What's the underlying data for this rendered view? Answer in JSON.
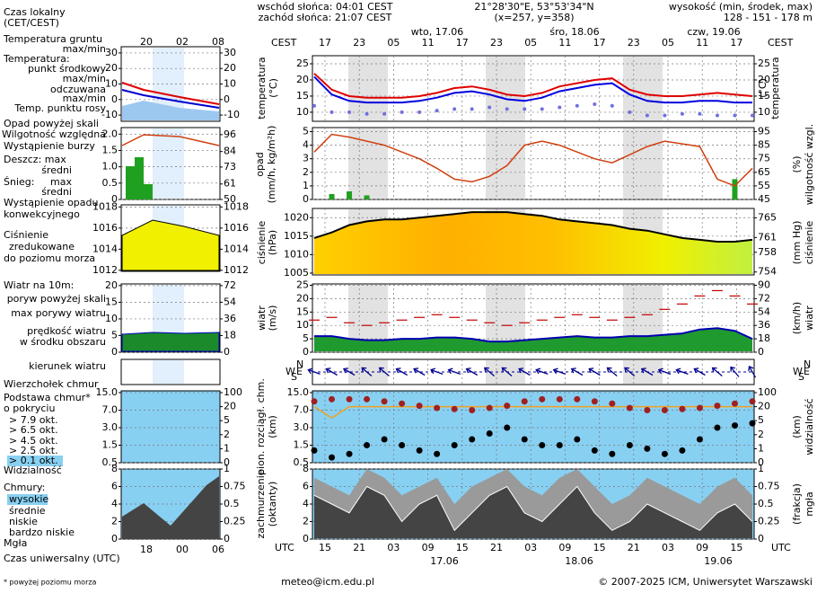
{
  "header": {
    "sunrise": "wschód słońca: 04:01 CEST",
    "sunset": "zachód słońca: 21:07 CEST",
    "coords": "21°28'30\"E, 53°53'34\"N",
    "grid": "(x=257, y=358)",
    "height_title": "wysokość (min, środek, max)",
    "height": "128 - 151 - 178 m"
  },
  "time": {
    "cest_label": "CEST",
    "cest_hours": [
      "17",
      "23",
      "05",
      "11",
      "17",
      "23",
      "05",
      "11",
      "17",
      "23",
      "05",
      "11",
      "17"
    ],
    "days": [
      "wto, 17.06",
      "śro, 18.06",
      "czw, 19.06"
    ],
    "utc_label": "UTC",
    "utc_hours": [
      "15",
      "21",
      "03",
      "09",
      "15",
      "21",
      "03",
      "09",
      "15",
      "21",
      "03",
      "09",
      "15"
    ],
    "dates": [
      "17.06",
      "18.06",
      "19.06"
    ],
    "side_top": [
      "20",
      "02",
      "08"
    ],
    "side_bottom": [
      "18",
      "00",
      "06"
    ]
  },
  "legend": {
    "local_time": "Czas lokalny",
    "local_zone": "(CET/CEST)",
    "ground_temp": "Temperatura gruntu",
    "ground_maxmin": "max/min",
    "temperature": "Temperatura:",
    "mid_point": "punkt środkowy",
    "mid_maxmin": "max/min",
    "apparent": "odczuwana",
    "apparent_maxmin": "max/min",
    "dew_point": "Temp. punktu rosy",
    "precip_over": "Opad powyżej skali",
    "humidity": "Wilgotność względna",
    "storm": "Wystąpienie burzy",
    "rain_max": "Deszcz: max",
    "rain_mean": "średni",
    "snow": "Śnieg:",
    "snow_max": "max",
    "snow_mean": "średni",
    "convective_1": "Wystąpienie opadu",
    "convective_2": "konwekcyjnego",
    "pressure_1": "Ciśnienie",
    "pressure_2": "zredukowane",
    "pressure_3": "do poziomu morza",
    "wind_title": "Wiatr na 10m:",
    "gust_over": "poryw powyżej skali",
    "gust_max": "max porywy wiatru",
    "wind_speed_1": "prędkość wiatru",
    "wind_speed_2": "w środku obszaru",
    "wind_dir": "kierunek wiatru",
    "cloud_top": "Wierzchołek chmur",
    "cloud_base_1": "Podstawa chmur*",
    "cloud_base_2": "o pokryciu",
    "okt_79": "> 7.9 okt.",
    "okt_65": "> 6.5 okt.",
    "okt_45": "> 4.5 okt.",
    "okt_25": "> 2.5 okt.",
    "okt_01": "> 0.1 okt.",
    "visibility": "Widzialność",
    "clouds": "Chmury:",
    "high": "wysokie",
    "medium": "średnie",
    "low": "niskie",
    "very_low": "bardzo niskie",
    "fog": "Mgła",
    "utc_time": "Czas uniwersalny (UTC)",
    "footnote": "* powyżej poziomu morza"
  },
  "footer": {
    "email": "meteo@icm.edu.pl",
    "copyright": "© 2007-2025 ICM, Uniwersytet Warszawski"
  },
  "compass": [
    "W",
    "S",
    "N",
    "E"
  ],
  "side": {
    "temperature": {
      "ylim": [
        -14,
        34
      ],
      "yticks": [
        -10,
        0,
        10,
        20,
        30
      ]
    },
    "precip": {
      "ylim": [
        0,
        2.2
      ],
      "yticks": [
        0,
        0.5,
        {
          "value": 1,
          "label": "1.0"
        },
        1.5,
        {
          "value": 2,
          "label": "2.0"
        }
      ],
      "y2lim": [
        50,
        101
      ],
      "y2ticks": [
        50,
        61,
        73,
        84,
        96
      ]
    },
    "pressure": {
      "ylim": [
        1011.9,
        1018.2
      ],
      "yticks": [
        1012,
        1014,
        1016,
        1018
      ]
    },
    "wind": {
      "ylim": [
        0,
        20.5
      ],
      "yticks": [
        0,
        5,
        10,
        15,
        20
      ],
      "y2lim": [
        0,
        73.8
      ],
      "y2ticks": [
        0,
        18,
        36,
        54,
        72
      ]
    },
    "cloudbase": {
      "yticks": [
        0.5,
        1.5,
        {
          "value": 3,
          "label": "3.0"
        },
        {
          "value": 7,
          "label": "7.0"
        },
        {
          "value": 15,
          "label": "15.0"
        }
      ],
      "y2ticks": [
        0,
        1,
        2,
        5,
        20,
        100
      ]
    },
    "cloudcover": {
      "ylim": [
        0,
        8
      ],
      "yticks": [
        0,
        2,
        4,
        6,
        8
      ],
      "y2lim": [
        0,
        1
      ],
      "y2ticks": [
        0,
        0.25,
        0.5,
        0.75,
        1
      ]
    }
  },
  "panels": {
    "temperature": {
      "label": "temperatura",
      "unit": "(°C)",
      "ylim": [
        7.2,
        27.5
      ],
      "yticks": [
        10,
        15,
        20,
        25
      ],
      "mid": [
        22,
        17,
        15,
        14.5,
        14.5,
        14.5,
        15,
        16,
        17.5,
        18,
        17,
        15.5,
        15,
        16,
        18,
        19,
        20,
        20.5,
        17,
        15.5,
        15,
        15,
        15.5,
        16,
        15.5,
        15
      ],
      "min": [
        21,
        15.5,
        13.5,
        13,
        13,
        13,
        13.5,
        14.5,
        16,
        16.5,
        15.5,
        14,
        13.5,
        14.5,
        16.5,
        17.5,
        18.5,
        19,
        15.5,
        13.5,
        13,
        13,
        13.5,
        13.5,
        13,
        13
      ],
      "dew": [
        12,
        10,
        10,
        9.5,
        9.5,
        10,
        10,
        10.5,
        11,
        11,
        11.5,
        11,
        11,
        11,
        11.5,
        12,
        12.5,
        12,
        10,
        9,
        9,
        9.5,
        9.5,
        9,
        9,
        9
      ]
    },
    "precip": {
      "label": "opad",
      "unit": "(mm/h, kg/m²h)",
      "right_label": "wilgotność wzgl.",
      "right_unit": "(%)",
      "ylim": [
        0,
        5.3
      ],
      "yticks": [
        0,
        1,
        2,
        3,
        4,
        5
      ],
      "y2lim": [
        45,
        98
      ],
      "y2ticks": [
        45,
        55,
        65,
        75,
        85,
        95
      ],
      "precip": [
        0,
        0.4,
        0.6,
        0.3,
        0,
        0,
        0,
        0,
        0,
        0,
        0,
        0,
        0,
        0,
        0,
        0,
        0,
        0,
        0,
        0,
        0,
        0,
        0,
        0,
        1.5,
        0
      ],
      "humidity": [
        80,
        93,
        91,
        88,
        85,
        80,
        75,
        68,
        60,
        58,
        62,
        70,
        85,
        88,
        85,
        80,
        75,
        72,
        78,
        84,
        88,
        86,
        84,
        60,
        55,
        68
      ]
    },
    "pressure": {
      "label": "ciśnienie",
      "unit": "(hPa)",
      "right_label": "ciśnienie",
      "right_unit": "(mm Hg)",
      "ylim": [
        1004.5,
        1022.5
      ],
      "yticks": [
        1005,
        1010,
        1015,
        1020
      ],
      "y2lim": [
        753.4,
        766.9
      ],
      "y2ticks": [
        754,
        758,
        761,
        765
      ],
      "values": [
        1014.5,
        1016,
        1018,
        1019,
        1019.5,
        1019.5,
        1020,
        1020.5,
        1021,
        1021.5,
        1021.5,
        1021.5,
        1021,
        1020.5,
        1019.5,
        1019,
        1018.5,
        1018,
        1017,
        1016.5,
        1015.5,
        1014.5,
        1014,
        1013.5,
        1013.5,
        1014
      ]
    },
    "wind": {
      "label": "wiatr",
      "unit": "(m/s)",
      "right_label": "wiatr",
      "right_unit": "(km/h)",
      "ylim": [
        0,
        25.5
      ],
      "yticks": [
        0,
        5,
        10,
        15,
        20,
        25
      ],
      "y2lim": [
        0,
        91.8
      ],
      "y2ticks": [
        0,
        18,
        36,
        54,
        72,
        90
      ],
      "speed": [
        6,
        6,
        5,
        4.5,
        4.5,
        5,
        5,
        5.5,
        5.5,
        5,
        4,
        4,
        4.5,
        5,
        5.5,
        6,
        5.5,
        5.5,
        6,
        6,
        6.5,
        7,
        8.5,
        9,
        8,
        5
      ],
      "gusts": [
        12,
        13,
        11,
        10,
        11,
        12,
        13,
        14,
        13,
        12,
        11,
        10,
        11,
        12,
        13,
        14,
        13,
        12,
        13,
        14,
        16,
        18,
        21,
        23,
        21,
        18
      ],
      "direction": [
        290,
        300,
        300,
        310,
        310,
        300,
        300,
        290,
        290,
        300,
        310,
        310,
        300,
        290,
        290,
        300,
        300,
        310,
        310,
        300,
        290,
        290,
        300,
        310,
        320,
        330
      ]
    },
    "cloudbase": {
      "label": "pion. rozciągł. chm.",
      "unit": "(km)",
      "right_label": "widzialność",
      "right_unit": "(km)",
      "yticks": [
        0.5,
        1.5,
        {
          "value": 3,
          "label": "3.0"
        },
        {
          "value": 7,
          "label": "7.0"
        },
        {
          "value": 15,
          "label": "15.0"
        }
      ],
      "y2ticks": [
        0,
        1,
        2,
        5,
        20,
        100
      ],
      "high": [
        11,
        12,
        12,
        12,
        11,
        10,
        9,
        8,
        7.5,
        7,
        8,
        9,
        11,
        12,
        12,
        12,
        11,
        10,
        8,
        7,
        7,
        7.5,
        8,
        9,
        10,
        11
      ],
      "low": [
        1.2,
        0.8,
        1.0,
        1.5,
        2.0,
        1.5,
        1.2,
        1.0,
        1.5,
        2.0,
        2.5,
        3.0,
        2.0,
        1.5,
        1.5,
        2.0,
        1.2,
        1.0,
        1.5,
        1.3,
        1.0,
        1.2,
        2.0,
        3.0,
        3.5,
        4.0
      ],
      "visibility": [
        20,
        8,
        20,
        20,
        20,
        20,
        20,
        20,
        20,
        20,
        20,
        20,
        20,
        20,
        20,
        20,
        20,
        20,
        20,
        20,
        20,
        20,
        20,
        20,
        20,
        20
      ]
    },
    "cloudcover": {
      "label": "zachmurzenie",
      "unit": "(oktanty)",
      "right_label": "mgła",
      "right_unit": "(frakcja)",
      "ylim": [
        0,
        8
      ],
      "yticks": [
        0,
        2,
        4,
        6,
        8
      ],
      "y2lim": [
        0,
        1
      ],
      "y2ticks": [
        0,
        0.25,
        0.5,
        0.75,
        1
      ],
      "total": [
        7,
        6,
        5,
        8,
        7,
        5,
        6,
        7,
        4,
        6,
        7,
        8,
        6,
        5,
        7,
        8,
        6,
        4,
        5,
        7,
        6,
        5,
        4,
        6,
        7,
        5
      ],
      "low": [
        5,
        4,
        3,
        6,
        5,
        2,
        4,
        5,
        1,
        3,
        5,
        6,
        3,
        2,
        4,
        6,
        3,
        1,
        2,
        4,
        3,
        2,
        1,
        3,
        4,
        2
      ]
    }
  }
}
